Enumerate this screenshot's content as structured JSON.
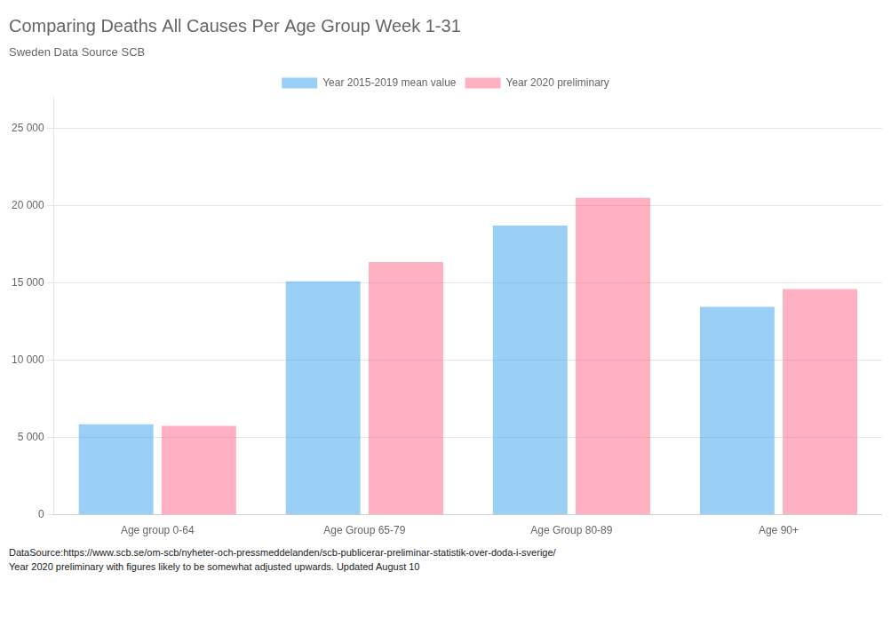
{
  "chart_data": {
    "type": "bar",
    "title": "Comparing Deaths All Causes Per Age Group Week 1-31",
    "subtitle": "Sweden Data Source SCB",
    "categories": [
      "Age group 0-64",
      "Age Group 65-79",
      "Age Group 80-89",
      "Age 90+"
    ],
    "series": [
      {
        "name": "Year 2015-2019 mean value",
        "values": [
          5850,
          15100,
          18700,
          13450
        ]
      },
      {
        "name": "Year 2020 preliminary",
        "values": [
          5750,
          16350,
          20500,
          14600
        ]
      }
    ],
    "ylim": [
      0,
      27000
    ],
    "yticks": [
      0,
      {
        "value": 5000,
        "label": "5 000"
      },
      {
        "value": 10000,
        "label": "10 000"
      },
      {
        "value": 15000,
        "label": "15 000"
      },
      {
        "value": 20000,
        "label": "20 000"
      },
      {
        "value": 25000,
        "label": "25 000"
      }
    ],
    "grid": true,
    "legend": "top",
    "annotations": [
      "DataSource:https://www.scb.se/om-scb/nyheter-och-pressmeddelanden/scb-publicerar-preliminar-statistik-over-doda-i-sverige/",
      "Year 2020 preliminary with figures likely to be somewhat adjusted upwards. Updated August 10"
    ]
  }
}
